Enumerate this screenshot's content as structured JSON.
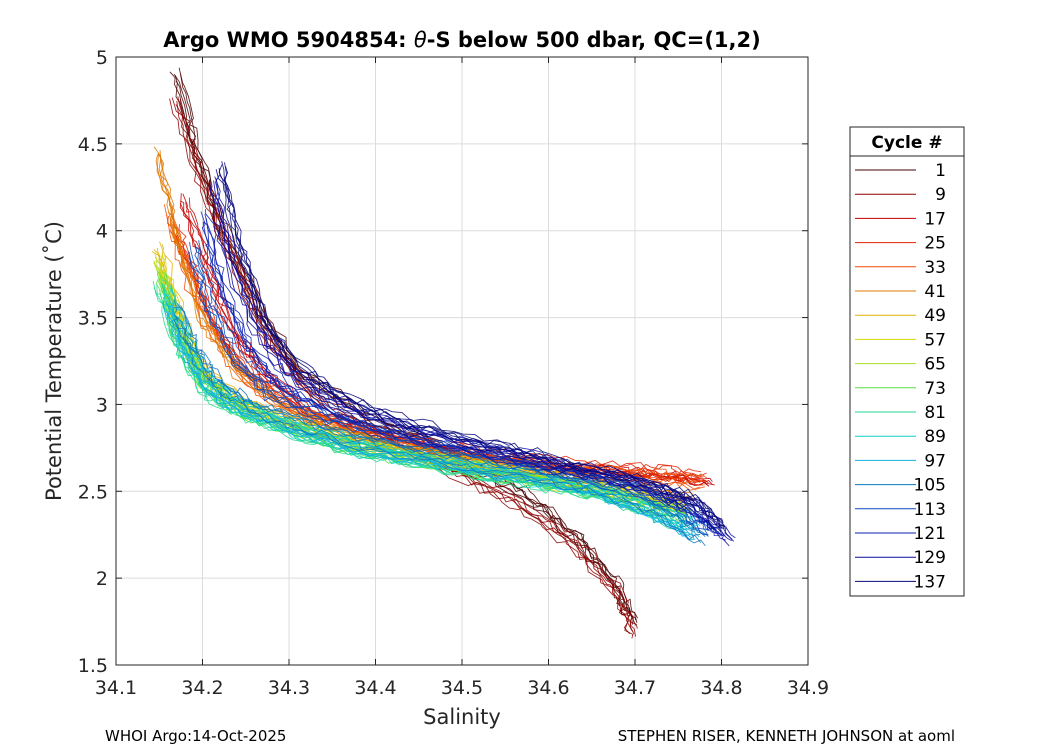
{
  "chart_data": {
    "type": "line",
    "title": "Argo WMO 5904854: θ-S below 500 dbar,  QC=(1,2)",
    "title_parts": [
      "Argo WMO 5904854: ",
      "θ",
      "-S below 500 dbar,  QC=(1,2)"
    ],
    "xlabel": "Salinity",
    "ylabel": "Potential Temperature (˚C)",
    "xlim": [
      34.1,
      34.9
    ],
    "ylim": [
      1.5,
      5
    ],
    "x_ticks": [
      34.1,
      34.2,
      34.3,
      34.4,
      34.5,
      34.6,
      34.7,
      34.8,
      34.9
    ],
    "x_tick_labels": [
      "34.1",
      "34.2",
      "34.3",
      "34.4",
      "34.5",
      "34.6",
      "34.7",
      "34.8",
      "34.9"
    ],
    "y_ticks": [
      1.5,
      2,
      2.5,
      3,
      3.5,
      4,
      4.5,
      5
    ],
    "y_tick_labels": [
      "1.5",
      "2",
      "2.5",
      "3",
      "3.5",
      "4",
      "4.5",
      "5"
    ],
    "grid": true,
    "legend_title": "Cycle #",
    "legend_position": "right",
    "legend": [
      {
        "label": "1",
        "color": "#4a0000"
      },
      {
        "label": "9",
        "color": "#8c0000"
      },
      {
        "label": "17",
        "color": "#c40000"
      },
      {
        "label": "25",
        "color": "#e02000"
      },
      {
        "label": "33",
        "color": "#f04a00"
      },
      {
        "label": "41",
        "color": "#e07800"
      },
      {
        "label": "49",
        "color": "#e0b400"
      },
      {
        "label": "57",
        "color": "#d8d800"
      },
      {
        "label": "65",
        "color": "#a8e020"
      },
      {
        "label": "73",
        "color": "#58e040"
      },
      {
        "label": "81",
        "color": "#20d890"
      },
      {
        "label": "89",
        "color": "#10d0c8"
      },
      {
        "label": "97",
        "color": "#10b0e0"
      },
      {
        "label": "105",
        "color": "#0a78c0"
      },
      {
        "label": "113",
        "color": "#0a48c0"
      },
      {
        "label": "121",
        "color": "#0a20b0"
      },
      {
        "label": "129",
        "color": "#0a0aa0"
      },
      {
        "label": "137",
        "color": "#06067a"
      }
    ],
    "series": [
      {
        "name": "1",
        "color": "#4a0000",
        "x": [
          34.17,
          34.19,
          34.22,
          34.26,
          34.31,
          34.38,
          34.46,
          34.53,
          34.59,
          34.64,
          34.68,
          34.7
        ],
        "y": [
          4.9,
          4.5,
          4.05,
          3.6,
          3.2,
          2.95,
          2.78,
          2.6,
          2.42,
          2.2,
          1.95,
          1.75
        ]
      },
      {
        "name": "9",
        "color": "#8c0000",
        "x": [
          34.17,
          34.2,
          34.24,
          34.28,
          34.34,
          34.42,
          34.5,
          34.57,
          34.63,
          34.68,
          34.7
        ],
        "y": [
          4.75,
          4.3,
          3.8,
          3.35,
          3.0,
          2.8,
          2.6,
          2.42,
          2.2,
          1.92,
          1.68
        ]
      },
      {
        "name": "17",
        "color": "#c40000",
        "x": [
          34.18,
          34.2,
          34.23,
          34.27,
          34.33,
          34.42,
          34.52,
          34.61,
          34.68,
          34.74,
          34.79
        ],
        "y": [
          4.2,
          3.9,
          3.5,
          3.2,
          2.95,
          2.82,
          2.72,
          2.65,
          2.62,
          2.6,
          2.55
        ]
      },
      {
        "name": "25",
        "color": "#e02000",
        "x": [
          34.17,
          34.19,
          34.22,
          34.26,
          34.32,
          34.41,
          34.51,
          34.6,
          34.67,
          34.73,
          34.78
        ],
        "y": [
          4.0,
          3.75,
          3.4,
          3.15,
          2.95,
          2.8,
          2.72,
          2.66,
          2.62,
          2.6,
          2.58
        ]
      },
      {
        "name": "33",
        "color": "#f04a00",
        "x": [
          34.16,
          34.18,
          34.21,
          34.25,
          34.31,
          34.4,
          34.5,
          34.59,
          34.66,
          34.72,
          34.78
        ],
        "y": [
          4.1,
          3.8,
          3.45,
          3.15,
          2.95,
          2.8,
          2.7,
          2.64,
          2.6,
          2.58,
          2.55
        ]
      },
      {
        "name": "41",
        "color": "#e07800",
        "x": [
          34.15,
          34.17,
          34.2,
          34.24,
          34.3,
          34.39,
          34.49,
          34.58,
          34.66,
          34.72,
          34.77
        ],
        "y": [
          4.45,
          4.0,
          3.5,
          3.2,
          2.97,
          2.8,
          2.7,
          2.62,
          2.55,
          2.5,
          2.45
        ]
      },
      {
        "name": "49",
        "color": "#e0b400",
        "x": [
          34.15,
          34.17,
          34.2,
          34.24,
          34.3,
          34.39,
          34.49,
          34.58,
          34.65,
          34.71,
          34.76
        ],
        "y": [
          3.9,
          3.55,
          3.2,
          3.02,
          2.9,
          2.78,
          2.68,
          2.6,
          2.52,
          2.46,
          2.4
        ]
      },
      {
        "name": "57",
        "color": "#d8d800",
        "x": [
          34.15,
          34.17,
          34.2,
          34.24,
          34.3,
          34.38,
          34.48,
          34.57,
          34.65,
          34.71,
          34.76
        ],
        "y": [
          3.85,
          3.5,
          3.15,
          3.0,
          2.88,
          2.76,
          2.67,
          2.59,
          2.52,
          2.46,
          2.4
        ]
      },
      {
        "name": "65",
        "color": "#a8e020",
        "x": [
          34.15,
          34.17,
          34.2,
          34.24,
          34.3,
          34.38,
          34.48,
          34.57,
          34.65,
          34.71,
          34.76
        ],
        "y": [
          3.8,
          3.45,
          3.15,
          2.98,
          2.87,
          2.75,
          2.66,
          2.58,
          2.51,
          2.44,
          2.38
        ]
      },
      {
        "name": "73",
        "color": "#58e040",
        "x": [
          34.15,
          34.17,
          34.2,
          34.24,
          34.3,
          34.38,
          34.48,
          34.57,
          34.65,
          34.71,
          34.76
        ],
        "y": [
          3.75,
          3.4,
          3.12,
          2.97,
          2.86,
          2.74,
          2.65,
          2.57,
          2.5,
          2.42,
          2.35
        ]
      },
      {
        "name": "81",
        "color": "#20d890",
        "x": [
          34.15,
          34.17,
          34.2,
          34.24,
          34.3,
          34.38,
          34.48,
          34.57,
          34.65,
          34.71,
          34.76
        ],
        "y": [
          3.7,
          3.38,
          3.1,
          2.96,
          2.85,
          2.73,
          2.64,
          2.56,
          2.49,
          2.4,
          2.3
        ]
      },
      {
        "name": "89",
        "color": "#10d0c8",
        "x": [
          34.16,
          34.18,
          34.21,
          34.25,
          34.31,
          34.39,
          34.49,
          34.58,
          34.66,
          34.72,
          34.77
        ],
        "y": [
          3.65,
          3.35,
          3.1,
          2.97,
          2.86,
          2.74,
          2.65,
          2.57,
          2.5,
          2.4,
          2.28
        ]
      },
      {
        "name": "97",
        "color": "#10b0e0",
        "x": [
          34.16,
          34.18,
          34.21,
          34.25,
          34.31,
          34.39,
          34.49,
          34.58,
          34.66,
          34.72,
          34.77
        ],
        "y": [
          3.6,
          3.32,
          3.08,
          2.97,
          2.86,
          2.75,
          2.66,
          2.58,
          2.5,
          2.38,
          2.25
        ]
      },
      {
        "name": "105",
        "color": "#0a78c0",
        "x": [
          34.17,
          34.19,
          34.22,
          34.26,
          34.32,
          34.4,
          34.5,
          34.59,
          34.67,
          34.73,
          34.78
        ],
        "y": [
          3.55,
          3.3,
          3.1,
          2.98,
          2.87,
          2.76,
          2.67,
          2.59,
          2.5,
          2.38,
          2.22
        ]
      },
      {
        "name": "113",
        "color": "#0a48c0",
        "x": [
          34.19,
          34.21,
          34.24,
          34.28,
          34.34,
          34.42,
          34.52,
          34.61,
          34.69,
          34.75,
          34.79
        ],
        "y": [
          3.9,
          3.55,
          3.25,
          3.05,
          2.92,
          2.8,
          2.7,
          2.61,
          2.52,
          2.4,
          2.25
        ]
      },
      {
        "name": "121",
        "color": "#0a20b0",
        "x": [
          34.2,
          34.22,
          34.25,
          34.29,
          34.35,
          34.43,
          34.53,
          34.62,
          34.7,
          34.76,
          34.8
        ],
        "y": [
          4.1,
          3.7,
          3.35,
          3.12,
          2.97,
          2.84,
          2.73,
          2.63,
          2.54,
          2.42,
          2.27
        ]
      },
      {
        "name": "129",
        "color": "#0a0aa0",
        "x": [
          34.21,
          34.23,
          34.26,
          34.3,
          34.36,
          34.44,
          34.54,
          34.63,
          34.71,
          34.77,
          34.81
        ],
        "y": [
          4.3,
          3.85,
          3.45,
          3.18,
          3.0,
          2.86,
          2.74,
          2.64,
          2.55,
          2.42,
          2.22
        ]
      },
      {
        "name": "137",
        "color": "#06067a",
        "x": [
          34.22,
          34.24,
          34.27,
          34.31,
          34.37,
          34.45,
          34.55,
          34.64,
          34.72,
          34.77,
          34.8
        ],
        "y": [
          4.4,
          3.95,
          3.5,
          3.22,
          3.02,
          2.88,
          2.75,
          2.64,
          2.55,
          2.45,
          2.3
        ]
      }
    ]
  },
  "footer": {
    "left": "WHOI Argo:14-Oct-2025",
    "right": "STEPHEN RISER, KENNETH JOHNSON at aoml"
  }
}
